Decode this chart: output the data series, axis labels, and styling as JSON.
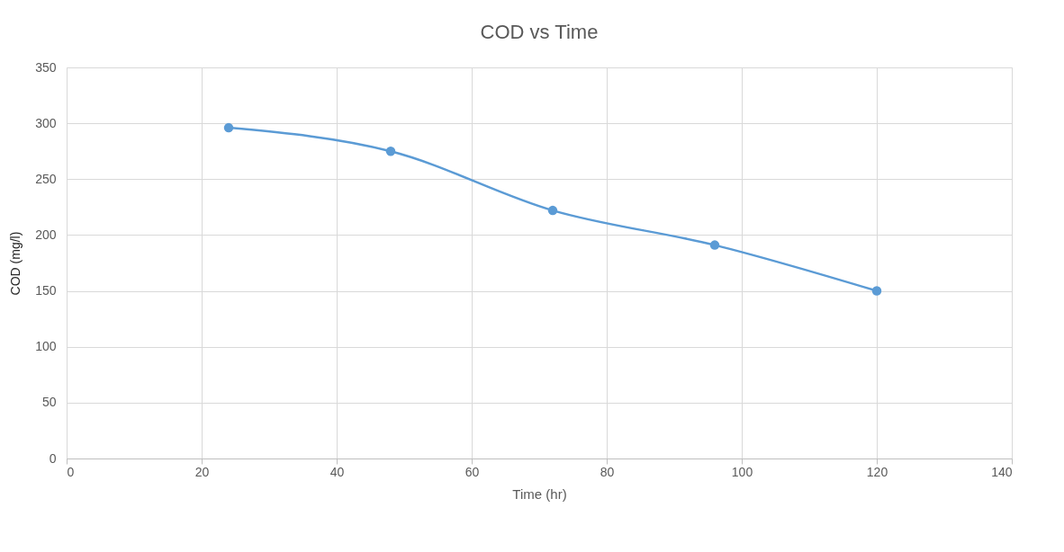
{
  "chart_data": {
    "type": "line",
    "title": "COD vs Time",
    "xlabel": "Time (hr)",
    "ylabel": "COD (mg/l)",
    "x": [
      24,
      48,
      72,
      96,
      120
    ],
    "series": [
      {
        "color": "#5b9bd5",
        "values": [
          296,
          275,
          222,
          191,
          150
        ]
      }
    ],
    "xlim": [
      0,
      140
    ],
    "xticks": [
      0,
      20,
      40,
      60,
      80,
      100,
      120,
      140
    ],
    "ylim": [
      0,
      350
    ],
    "yticks": [
      0,
      50,
      100,
      150,
      200,
      250,
      300,
      350
    ],
    "grid": true,
    "marker": "circle",
    "line_style": "solid"
  }
}
